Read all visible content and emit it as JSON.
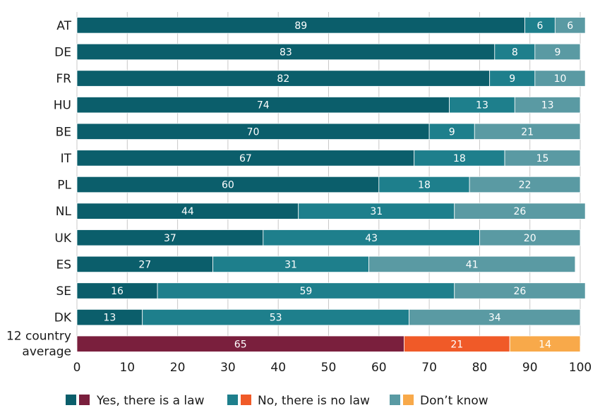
{
  "chart_data": {
    "type": "bar",
    "orientation": "horizontal",
    "stacked": true,
    "categories": [
      "AT",
      "DE",
      "FR",
      "HU",
      "BE",
      "IT",
      "PL",
      "NL",
      "UK",
      "ES",
      "SE",
      "DK",
      "12 country average"
    ],
    "series": [
      {
        "name": "Yes, there is a law",
        "values": [
          89,
          83,
          82,
          74,
          70,
          67,
          60,
          44,
          37,
          27,
          16,
          13,
          65
        ]
      },
      {
        "name": "No, there is no law",
        "values": [
          6,
          8,
          9,
          13,
          9,
          18,
          18,
          31,
          43,
          31,
          59,
          53,
          21
        ]
      },
      {
        "name": "Don’t know",
        "values": [
          6,
          9,
          10,
          13,
          21,
          15,
          22,
          26,
          20,
          41,
          26,
          34,
          14
        ]
      }
    ],
    "xlim": [
      0,
      100
    ],
    "xticks": [
      "0",
      "10",
      "20",
      "30",
      "40",
      "50",
      "60",
      "70",
      "80",
      "90",
      "100"
    ],
    "grid": true,
    "legend_position": "bottom",
    "colors": {
      "yes": "#0b5e6b",
      "no": "#1e7f8c",
      "dont_know": "#5a9aa3",
      "avg_yes": "#7a1f3d",
      "avg_no": "#f05a28",
      "avg_dont_know": "#f8a94a"
    }
  }
}
